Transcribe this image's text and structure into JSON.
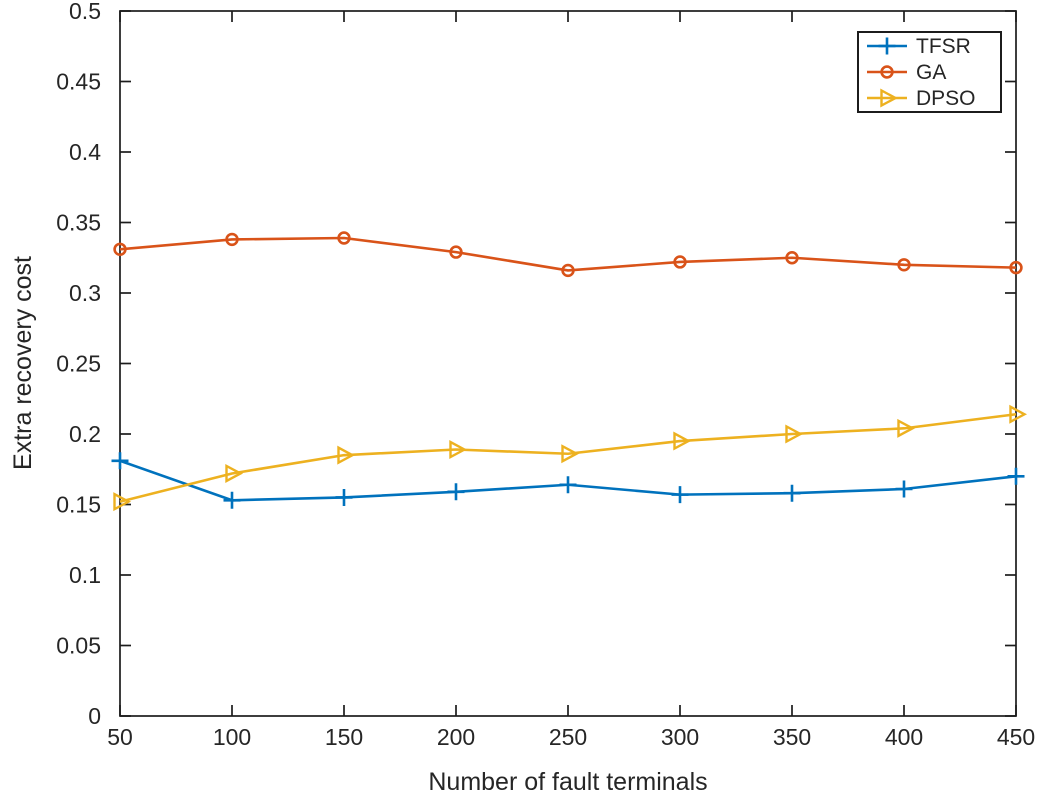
{
  "figure": {
    "background": "#ffffff",
    "axis_color": "#262626",
    "box_color": "#1c1c1c"
  },
  "chart_data": {
    "type": "line",
    "title": "",
    "xlabel": "Number of fault terminals",
    "ylabel": "Extra recovery cost",
    "xlim": [
      50,
      450
    ],
    "ylim": [
      0,
      0.5
    ],
    "grid": false,
    "legend_position": "top-right",
    "xticks": [
      50,
      100,
      150,
      200,
      250,
      300,
      350,
      400,
      450
    ],
    "xtick_labels": [
      "50",
      "100",
      "150",
      "200",
      "250",
      "300",
      "350",
      "400",
      "450"
    ],
    "yticks": [
      0,
      0.05,
      0.1,
      0.15,
      0.2,
      0.25,
      0.3,
      0.35,
      0.4,
      0.45,
      0.5
    ],
    "ytick_labels": [
      "0",
      "0.05",
      "0.1",
      "0.15",
      "0.2",
      "0.25",
      "0.3",
      "0.35",
      "0.4",
      "0.45",
      "0.5"
    ],
    "x": [
      50,
      100,
      150,
      200,
      250,
      300,
      350,
      400,
      450
    ],
    "series": [
      {
        "name": "TFSR",
        "color": "#0072BD",
        "marker": "plus",
        "values": [
          0.181,
          0.153,
          0.155,
          0.159,
          0.164,
          0.157,
          0.158,
          0.161,
          0.17
        ]
      },
      {
        "name": "GA",
        "color": "#D95319",
        "marker": "circle",
        "values": [
          0.331,
          0.338,
          0.339,
          0.329,
          0.316,
          0.322,
          0.325,
          0.32,
          0.318
        ]
      },
      {
        "name": "DPSO",
        "color": "#EDB120",
        "marker": "triangle-right",
        "values": [
          0.152,
          0.172,
          0.185,
          0.189,
          0.186,
          0.195,
          0.2,
          0.204,
          0.214
        ]
      }
    ]
  }
}
